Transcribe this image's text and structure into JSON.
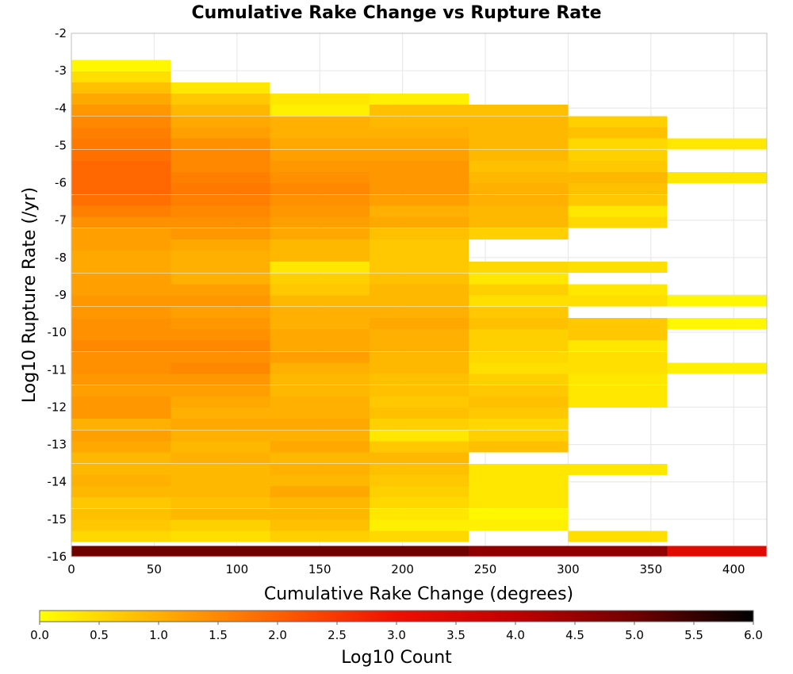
{
  "chart_data": {
    "type": "heatmap",
    "title": "Cumulative Rake Change vs Rupture Rate",
    "xlabel": "Cumulative Rake Change (degrees)",
    "ylabel": "Log10 Rupture Rate (/yr)",
    "xlim": [
      0,
      420
    ],
    "ylim": [
      -16,
      -2
    ],
    "xticks": [
      0,
      50,
      100,
      150,
      200,
      250,
      300,
      350,
      400
    ],
    "yticks": [
      -2,
      -3,
      -4,
      -5,
      -6,
      -7,
      -8,
      -9,
      -10,
      -11,
      -12,
      -13,
      -14,
      -15,
      -16
    ],
    "grid": true,
    "x_bin_width": 60,
    "y_bin_width": 0.286,
    "colorbar": {
      "label": "Log10 Count",
      "min": 0.0,
      "max": 6.0,
      "ticks": [
        "0.0",
        "0.5",
        "1.0",
        "1.5",
        "2.0",
        "2.5",
        "3.0",
        "3.5",
        "4.0",
        "4.5",
        "5.0",
        "5.5",
        "6.0"
      ],
      "colors": [
        "#ffff00",
        "#ffb000",
        "#ff6000",
        "#ee1000",
        "#c00000",
        "#700000",
        "#000000"
      ],
      "placement": "bottom"
    },
    "columns": [
      {
        "x_start": 0,
        "bins": [
          {
            "y": -3.0,
            "v": 0.1
          },
          {
            "y": -3.3,
            "v": 0.4
          },
          {
            "y": -3.6,
            "v": 0.8
          },
          {
            "y": -3.9,
            "v": 1.1
          },
          {
            "y": -4.2,
            "v": 1.3
          },
          {
            "y": -4.5,
            "v": 1.5
          },
          {
            "y": -4.8,
            "v": 1.6
          },
          {
            "y": -5.1,
            "v": 1.7
          },
          {
            "y": -5.4,
            "v": 1.8
          },
          {
            "y": -5.7,
            "v": 1.9
          },
          {
            "y": -6.0,
            "v": 1.9
          },
          {
            "y": -6.3,
            "v": 1.9
          },
          {
            "y": -6.6,
            "v": 1.8
          },
          {
            "y": -6.9,
            "v": 1.6
          },
          {
            "y": -7.2,
            "v": 1.4
          },
          {
            "y": -7.5,
            "v": 1.2
          },
          {
            "y": -7.8,
            "v": 1.2
          },
          {
            "y": -8.1,
            "v": 1.1
          },
          {
            "y": -8.4,
            "v": 1.1
          },
          {
            "y": -8.7,
            "v": 1.2
          },
          {
            "y": -9.0,
            "v": 1.2
          },
          {
            "y": -9.3,
            "v": 1.3
          },
          {
            "y": -9.6,
            "v": 1.3
          },
          {
            "y": -9.9,
            "v": 1.4
          },
          {
            "y": -10.2,
            "v": 1.4
          },
          {
            "y": -10.5,
            "v": 1.5
          },
          {
            "y": -10.8,
            "v": 1.4
          },
          {
            "y": -11.1,
            "v": 1.4
          },
          {
            "y": -11.4,
            "v": 1.3
          },
          {
            "y": -11.7,
            "v": 1.2
          },
          {
            "y": -12.0,
            "v": 1.3
          },
          {
            "y": -12.3,
            "v": 1.3
          },
          {
            "y": -12.6,
            "v": 1.0
          },
          {
            "y": -12.9,
            "v": 1.2
          },
          {
            "y": -13.2,
            "v": 1.1
          },
          {
            "y": -13.5,
            "v": 0.9
          },
          {
            "y": -13.8,
            "v": 0.9
          },
          {
            "y": -14.1,
            "v": 1.0
          },
          {
            "y": -14.4,
            "v": 0.9
          },
          {
            "y": -14.7,
            "v": 0.7
          },
          {
            "y": -15.0,
            "v": 0.8
          },
          {
            "y": -15.3,
            "v": 0.7
          },
          {
            "y": -15.6,
            "v": 0.5
          },
          {
            "y": -16.0,
            "v": 5.0
          }
        ]
      },
      {
        "x_start": 60,
        "bins": [
          {
            "y": -3.6,
            "v": 0.3
          },
          {
            "y": -3.9,
            "v": 0.7
          },
          {
            "y": -4.2,
            "v": 0.9
          },
          {
            "y": -4.5,
            "v": 1.1
          },
          {
            "y": -4.8,
            "v": 1.2
          },
          {
            "y": -5.1,
            "v": 1.4
          },
          {
            "y": -5.4,
            "v": 1.5
          },
          {
            "y": -5.7,
            "v": 1.5
          },
          {
            "y": -6.0,
            "v": 1.6
          },
          {
            "y": -6.3,
            "v": 1.7
          },
          {
            "y": -6.6,
            "v": 1.6
          },
          {
            "y": -6.9,
            "v": 1.5
          },
          {
            "y": -7.2,
            "v": 1.4
          },
          {
            "y": -7.5,
            "v": 1.3
          },
          {
            "y": -7.8,
            "v": 1.1
          },
          {
            "y": -8.1,
            "v": 1.0
          },
          {
            "y": -8.4,
            "v": 1.0
          },
          {
            "y": -8.7,
            "v": 1.0
          },
          {
            "y": -9.0,
            "v": 1.2
          },
          {
            "y": -9.3,
            "v": 1.3
          },
          {
            "y": -9.6,
            "v": 1.2
          },
          {
            "y": -9.9,
            "v": 1.3
          },
          {
            "y": -10.2,
            "v": 1.4
          },
          {
            "y": -10.5,
            "v": 1.5
          },
          {
            "y": -10.8,
            "v": 1.4
          },
          {
            "y": -11.1,
            "v": 1.5
          },
          {
            "y": -11.4,
            "v": 1.3
          },
          {
            "y": -11.7,
            "v": 1.2
          },
          {
            "y": -12.0,
            "v": 1.1
          },
          {
            "y": -12.3,
            "v": 1.0
          },
          {
            "y": -12.6,
            "v": 1.1
          },
          {
            "y": -12.9,
            "v": 1.0
          },
          {
            "y": -13.2,
            "v": 0.9
          },
          {
            "y": -13.5,
            "v": 1.0
          },
          {
            "y": -13.8,
            "v": 0.9
          },
          {
            "y": -14.1,
            "v": 0.9
          },
          {
            "y": -14.4,
            "v": 0.9
          },
          {
            "y": -14.7,
            "v": 0.8
          },
          {
            "y": -15.0,
            "v": 0.9
          },
          {
            "y": -15.3,
            "v": 0.6
          },
          {
            "y": -15.6,
            "v": 0.4
          },
          {
            "y": -16.0,
            "v": 5.0
          }
        ]
      },
      {
        "x_start": 120,
        "bins": [
          {
            "y": -3.9,
            "v": 0.3
          },
          {
            "y": -4.2,
            "v": 0.2
          },
          {
            "y": -4.5,
            "v": 1.0
          },
          {
            "y": -4.8,
            "v": 1.0
          },
          {
            "y": -5.1,
            "v": 1.1
          },
          {
            "y": -5.4,
            "v": 1.2
          },
          {
            "y": -5.7,
            "v": 1.3
          },
          {
            "y": -6.0,
            "v": 1.4
          },
          {
            "y": -6.3,
            "v": 1.5
          },
          {
            "y": -6.6,
            "v": 1.4
          },
          {
            "y": -6.9,
            "v": 1.3
          },
          {
            "y": -7.2,
            "v": 1.2
          },
          {
            "y": -7.5,
            "v": 1.1
          },
          {
            "y": -7.8,
            "v": 0.9
          },
          {
            "y": -8.1,
            "v": 0.9
          },
          {
            "y": -8.4,
            "v": 0.3
          },
          {
            "y": -8.7,
            "v": 0.6
          },
          {
            "y": -9.0,
            "v": 0.7
          },
          {
            "y": -9.3,
            "v": 0.9
          },
          {
            "y": -9.6,
            "v": 1.0
          },
          {
            "y": -9.9,
            "v": 1.0
          },
          {
            "y": -10.2,
            "v": 1.1
          },
          {
            "y": -10.5,
            "v": 1.1
          },
          {
            "y": -10.8,
            "v": 1.2
          },
          {
            "y": -11.1,
            "v": 1.0
          },
          {
            "y": -11.4,
            "v": 0.9
          },
          {
            "y": -11.7,
            "v": 0.9
          },
          {
            "y": -12.0,
            "v": 1.0
          },
          {
            "y": -12.3,
            "v": 1.0
          },
          {
            "y": -12.6,
            "v": 1.1
          },
          {
            "y": -12.9,
            "v": 1.0
          },
          {
            "y": -13.2,
            "v": 1.1
          },
          {
            "y": -13.5,
            "v": 0.9
          },
          {
            "y": -13.8,
            "v": 1.0
          },
          {
            "y": -14.1,
            "v": 0.9
          },
          {
            "y": -14.4,
            "v": 1.1
          },
          {
            "y": -14.7,
            "v": 0.9
          },
          {
            "y": -15.0,
            "v": 0.9
          },
          {
            "y": -15.3,
            "v": 0.8
          },
          {
            "y": -15.6,
            "v": 0.6
          },
          {
            "y": -16.0,
            "v": 5.0
          }
        ]
      },
      {
        "x_start": 180,
        "bins": [
          {
            "y": -3.9,
            "v": 0.2
          },
          {
            "y": -4.2,
            "v": 0.8
          },
          {
            "y": -4.5,
            "v": 0.9
          },
          {
            "y": -4.8,
            "v": 1.0
          },
          {
            "y": -5.1,
            "v": 1.1
          },
          {
            "y": -5.4,
            "v": 1.2
          },
          {
            "y": -5.7,
            "v": 1.3
          },
          {
            "y": -6.0,
            "v": 1.3
          },
          {
            "y": -6.3,
            "v": 1.3
          },
          {
            "y": -6.6,
            "v": 1.2
          },
          {
            "y": -6.9,
            "v": 1.0
          },
          {
            "y": -7.2,
            "v": 1.1
          },
          {
            "y": -7.5,
            "v": 0.8
          },
          {
            "y": -7.8,
            "v": 0.7
          },
          {
            "y": -8.1,
            "v": 0.7
          },
          {
            "y": -8.4,
            "v": 0.7
          },
          {
            "y": -8.7,
            "v": 0.8
          },
          {
            "y": -9.0,
            "v": 0.9
          },
          {
            "y": -9.3,
            "v": 0.9
          },
          {
            "y": -9.6,
            "v": 1.0
          },
          {
            "y": -9.9,
            "v": 1.1
          },
          {
            "y": -10.2,
            "v": 1.0
          },
          {
            "y": -10.5,
            "v": 1.0
          },
          {
            "y": -10.8,
            "v": 0.9
          },
          {
            "y": -11.1,
            "v": 0.9
          },
          {
            "y": -11.4,
            "v": 0.8
          },
          {
            "y": -11.7,
            "v": 0.8
          },
          {
            "y": -12.0,
            "v": 0.7
          },
          {
            "y": -12.3,
            "v": 0.8
          },
          {
            "y": -12.6,
            "v": 0.6
          },
          {
            "y": -12.9,
            "v": 0.3
          },
          {
            "y": -13.2,
            "v": 0.7
          },
          {
            "y": -13.5,
            "v": 0.9
          },
          {
            "y": -13.8,
            "v": 0.8
          },
          {
            "y": -14.1,
            "v": 0.7
          },
          {
            "y": -14.4,
            "v": 0.6
          },
          {
            "y": -14.7,
            "v": 0.5
          },
          {
            "y": -15.0,
            "v": 0.3
          },
          {
            "y": -15.3,
            "v": 0.2
          },
          {
            "y": -15.6,
            "v": 0.5
          },
          {
            "y": -16.0,
            "v": 5.0
          }
        ]
      },
      {
        "x_start": 240,
        "bins": [
          {
            "y": -4.2,
            "v": 0.8
          },
          {
            "y": -4.5,
            "v": 0.9
          },
          {
            "y": -4.8,
            "v": 0.9
          },
          {
            "y": -5.1,
            "v": 0.9
          },
          {
            "y": -5.4,
            "v": 0.9
          },
          {
            "y": -5.7,
            "v": 0.8
          },
          {
            "y": -6.0,
            "v": 0.9
          },
          {
            "y": -6.3,
            "v": 1.0
          },
          {
            "y": -6.6,
            "v": 1.0
          },
          {
            "y": -6.9,
            "v": 0.9
          },
          {
            "y": -7.2,
            "v": 0.9
          },
          {
            "y": -7.5,
            "v": 0.6
          },
          {
            "y": -8.4,
            "v": 0.5
          },
          {
            "y": -8.7,
            "v": 0.3
          },
          {
            "y": -9.0,
            "v": 0.6
          },
          {
            "y": -9.3,
            "v": 0.4
          },
          {
            "y": -9.6,
            "v": 0.7
          },
          {
            "y": -9.9,
            "v": 0.8
          },
          {
            "y": -10.2,
            "v": 0.6
          },
          {
            "y": -10.5,
            "v": 0.6
          },
          {
            "y": -10.8,
            "v": 0.5
          },
          {
            "y": -11.1,
            "v": 0.4
          },
          {
            "y": -11.4,
            "v": 0.6
          },
          {
            "y": -11.7,
            "v": 0.7
          },
          {
            "y": -12.0,
            "v": 0.8
          },
          {
            "y": -12.3,
            "v": 0.7
          },
          {
            "y": -12.6,
            "v": 0.5
          },
          {
            "y": -12.9,
            "v": 0.6
          },
          {
            "y": -13.2,
            "v": 0.8
          },
          {
            "y": -13.8,
            "v": 0.3
          },
          {
            "y": -14.1,
            "v": 0.3
          },
          {
            "y": -14.4,
            "v": 0.3
          },
          {
            "y": -14.7,
            "v": 0.3
          },
          {
            "y": -15.0,
            "v": 0.1
          },
          {
            "y": -15.3,
            "v": 0.2
          },
          {
            "y": -16.0,
            "v": 4.6
          }
        ]
      },
      {
        "x_start": 300,
        "bins": [
          {
            "y": -4.5,
            "v": 0.6
          },
          {
            "y": -4.8,
            "v": 0.8
          },
          {
            "y": -5.1,
            "v": 0.5
          },
          {
            "y": -5.4,
            "v": 0.6
          },
          {
            "y": -5.7,
            "v": 0.7
          },
          {
            "y": -6.0,
            "v": 0.9
          },
          {
            "y": -6.3,
            "v": 0.8
          },
          {
            "y": -6.6,
            "v": 0.7
          },
          {
            "y": -6.9,
            "v": 0.3
          },
          {
            "y": -7.2,
            "v": 0.5
          },
          {
            "y": -8.4,
            "v": 0.4
          },
          {
            "y": -9.0,
            "v": 0.3
          },
          {
            "y": -9.3,
            "v": 0.4
          },
          {
            "y": -9.9,
            "v": 0.7
          },
          {
            "y": -10.2,
            "v": 0.7
          },
          {
            "y": -10.5,
            "v": 0.3
          },
          {
            "y": -10.8,
            "v": 0.4
          },
          {
            "y": -11.1,
            "v": 0.4
          },
          {
            "y": -11.4,
            "v": 0.3
          },
          {
            "y": -11.7,
            "v": 0.3
          },
          {
            "y": -12.0,
            "v": 0.3
          },
          {
            "y": -13.8,
            "v": 0.3
          },
          {
            "y": -15.6,
            "v": 0.4
          },
          {
            "y": -16.0,
            "v": 4.6
          }
        ]
      },
      {
        "x_start": 360,
        "bins": [
          {
            "y": -5.1,
            "v": 0.3
          },
          {
            "y": -6.0,
            "v": 0.3
          },
          {
            "y": -9.3,
            "v": 0.1
          },
          {
            "y": -9.9,
            "v": 0.1
          },
          {
            "y": -11.1,
            "v": 0.2
          },
          {
            "y": -16.0,
            "v": 3.3
          }
        ]
      }
    ]
  }
}
